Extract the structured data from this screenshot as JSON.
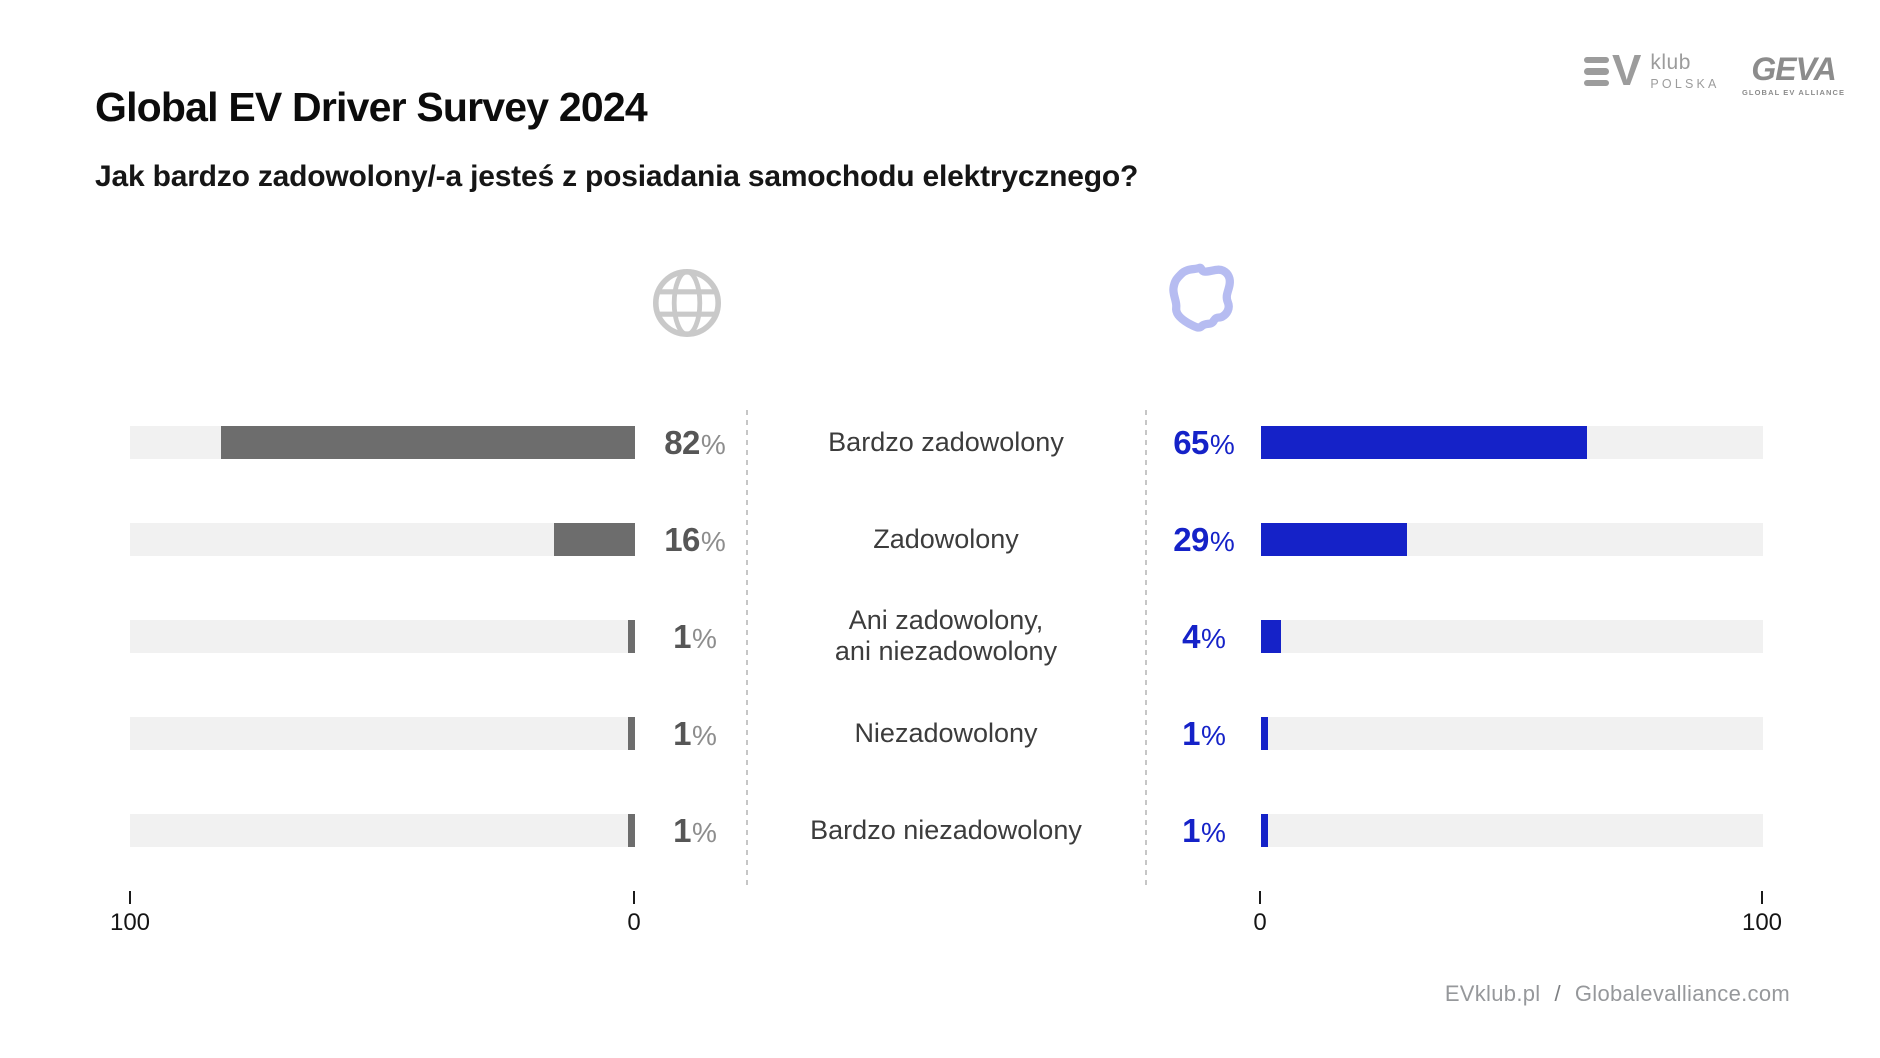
{
  "header": {
    "title": "Global EV Driver Survey 2024",
    "subtitle": "Jak bardzo zadowolony/-a jesteś z posiadania samochodu elektrycznego?"
  },
  "logos": {
    "evklub": {
      "v": "V",
      "klub": "klub",
      "polska": "POLSKA"
    },
    "geva": {
      "name": "GEVA",
      "tagline": "GLOBAL EV ALLIANCE"
    }
  },
  "icons": {
    "global": "globe-icon",
    "poland": "poland-map-icon",
    "globe_color": "#c9c9c9",
    "poland_color": "#b6bcf1"
  },
  "chart_data": {
    "type": "bar",
    "orientation": "horizontal",
    "title": "Jak bardzo zadowolony/-a jesteś z posiadania samochodu elektrycznego?",
    "categories": [
      "Bardzo zadowolony",
      "Zadowolony",
      "Ani zadowolony,\nani niezadowolony",
      "Niezadowolony",
      "Bardzo niezadowolony"
    ],
    "series": [
      {
        "name": "Global",
        "icon": "globe-icon",
        "values": [
          82,
          16,
          1,
          1,
          1
        ],
        "color": "#6d6d6d",
        "track_color": "#f1f1f1",
        "value_color": "#565656",
        "suffix_color": "#8d8d8d",
        "bar_direction": "right-to-left",
        "axis": {
          "start_label": "100",
          "end_label": "0"
        }
      },
      {
        "name": "Polska",
        "icon": "poland-map-icon",
        "values": [
          65,
          29,
          4,
          1,
          1
        ],
        "color": "#1522c8",
        "track_color": "#f1f1f1",
        "value_color": "#1522c8",
        "suffix_color": "#1522c8",
        "bar_direction": "left-to-right",
        "axis": {
          "start_label": "0",
          "end_label": "100"
        }
      }
    ],
    "value_suffix": "%",
    "xlim": [
      0,
      100
    ],
    "grid": false,
    "legend": false
  },
  "footer": {
    "site1": "EVklub.pl",
    "separator": "/",
    "site2": "Globalevalliance.com"
  }
}
